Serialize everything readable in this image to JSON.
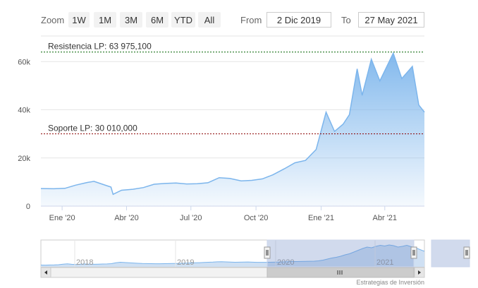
{
  "toolbar": {
    "zoom_label": "Zoom",
    "buttons": [
      "1W",
      "1M",
      "3M",
      "6M",
      "YTD",
      "All"
    ],
    "from_label": "From",
    "from_value": "2 Dic 2019",
    "to_label": "To",
    "to_value": "27 May 2021"
  },
  "chart_data": {
    "type": "area",
    "series": [
      {
        "x": [
          "2019-12-02",
          "2019-12-20",
          "2020-01-05",
          "2020-01-20",
          "2020-02-05",
          "2020-02-15",
          "2020-03-01",
          "2020-03-10",
          "2020-03-13",
          "2020-03-25",
          "2020-04-10",
          "2020-04-25",
          "2020-05-10",
          "2020-05-25",
          "2020-06-10",
          "2020-06-25",
          "2020-07-10",
          "2020-07-25",
          "2020-08-10",
          "2020-08-25",
          "2020-09-10",
          "2020-09-25",
          "2020-10-10",
          "2020-10-25",
          "2020-11-10",
          "2020-11-25",
          "2020-12-10",
          "2020-12-25",
          "2021-01-08",
          "2021-01-20",
          "2021-02-01",
          "2021-02-10",
          "2021-02-21",
          "2021-02-28",
          "2021-03-13",
          "2021-03-25",
          "2021-04-13",
          "2021-04-25",
          "2021-05-10",
          "2021-05-19",
          "2021-05-27"
        ],
        "values": [
          7300,
          7200,
          7400,
          8700,
          9800,
          10300,
          8800,
          7900,
          4900,
          6600,
          7000,
          7700,
          9100,
          9400,
          9600,
          9200,
          9300,
          9700,
          11800,
          11500,
          10500,
          10700,
          11300,
          13000,
          15500,
          18000,
          19000,
          23500,
          39000,
          31000,
          34000,
          38000,
          57000,
          46000,
          61000,
          52000,
          63500,
          53000,
          58000,
          42000,
          39000
        ]
      }
    ],
    "annotations": [
      {
        "label": "Resistencia LP: 63 975,100",
        "value": 63975.1,
        "color": "#006400"
      },
      {
        "label": "Soporte LP: 30 010,000",
        "value": 30010,
        "color": "#8b0000"
      }
    ],
    "y_ticks": [
      {
        "value": 0,
        "label": "0"
      },
      {
        "value": 20000,
        "label": "20k"
      },
      {
        "value": 40000,
        "label": "40k"
      },
      {
        "value": 60000,
        "label": "60k"
      }
    ],
    "x_ticks": [
      {
        "date": "2020-01-01",
        "label": "Ene '20"
      },
      {
        "date": "2020-04-01",
        "label": "Abr '20"
      },
      {
        "date": "2020-07-01",
        "label": "Jul '20"
      },
      {
        "date": "2020-10-01",
        "label": "Oct '20"
      },
      {
        "date": "2021-01-01",
        "label": "Ene '21"
      },
      {
        "date": "2021-04-01",
        "label": "Abr '21"
      }
    ],
    "xlim": [
      "2019-12-02",
      "2021-05-27"
    ],
    "ylim": [
      0,
      68000
    ],
    "grid": true,
    "line_color": "#7cb5ec"
  },
  "navigator": {
    "labels": [
      "2018",
      "2019",
      "2020",
      "2021"
    ],
    "values": [
      1000,
      900,
      1200,
      1500,
      2000,
      3500,
      4500,
      3200,
      2600,
      3400,
      4000,
      3600,
      3300,
      3600,
      4000,
      4100,
      5000,
      7500,
      9000,
      8200,
      7500,
      6800,
      6000,
      5500,
      5200,
      5000,
      4800,
      4700,
      5000,
      5200,
      5400,
      5600,
      6000,
      6500,
      7000,
      7400,
      7800,
      8500,
      9000,
      9500,
      10200,
      10500,
      10000,
      9500,
      9000,
      9300,
      9600,
      9800,
      9200,
      8800,
      8700,
      8800,
      9000,
      9300,
      9600,
      10000,
      10500,
      11000,
      11000,
      11200,
      11500,
      11800,
      12000,
      13000,
      15000,
      18000,
      21000,
      23000,
      26000,
      30000,
      33000,
      38000,
      43000,
      48000,
      52000,
      50000,
      54000,
      57000,
      55000,
      58000,
      56000,
      52000,
      54000,
      57000,
      53000,
      50000,
      45000,
      40000
    ]
  },
  "credit": "Estrategias de Inversión"
}
